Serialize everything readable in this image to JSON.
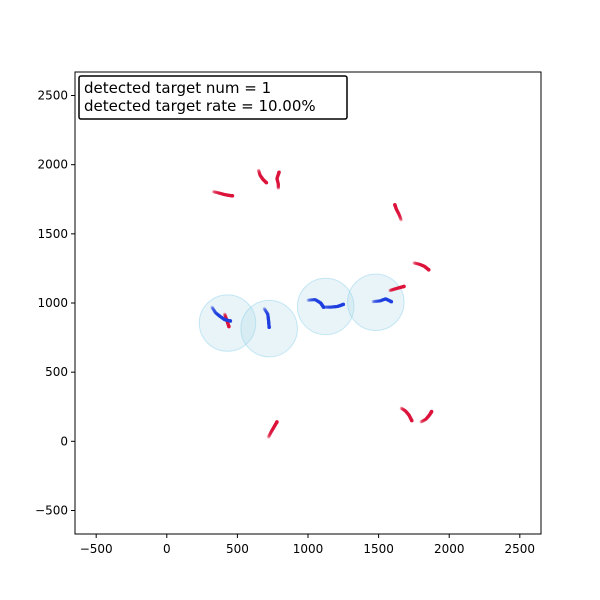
{
  "chart_data": {
    "type": "scatter",
    "title": "",
    "xlabel": "",
    "ylabel": "",
    "xlim": [
      -650,
      2650
    ],
    "ylim": [
      -670,
      2670
    ],
    "x_ticks": [
      -500,
      0,
      500,
      1000,
      1500,
      2000,
      2500
    ],
    "y_ticks": [
      -500,
      0,
      500,
      1000,
      1500,
      2000,
      2500
    ],
    "grid": false,
    "colors": {
      "undetected_track": "#dc143c",
      "detected_track": "#1f3fe0",
      "detection_circle_fill": "#add8e6",
      "detection_circle_edge": "#87ceeb"
    },
    "annotation": {
      "lines": [
        "detected target num = 1",
        "detected target rate = 10.00%"
      ],
      "placement": "top-left"
    },
    "detection_circles": [
      {
        "x": 430,
        "y": 855,
        "r": 200
      },
      {
        "x": 725,
        "y": 815,
        "r": 200
      },
      {
        "x": 1125,
        "y": 975,
        "r": 200
      },
      {
        "x": 1480,
        "y": 1005,
        "r": 200
      }
    ],
    "series": [
      {
        "kind": "undetected",
        "points": [
          [
            330,
            1805
          ],
          [
            370,
            1795
          ],
          [
            405,
            1785
          ],
          [
            440,
            1778
          ],
          [
            465,
            1775
          ]
        ]
      },
      {
        "kind": "undetected",
        "points": [
          [
            650,
            1960
          ],
          [
            660,
            1925
          ],
          [
            680,
            1895
          ],
          [
            705,
            1870
          ]
        ]
      },
      {
        "kind": "undetected",
        "points": [
          [
            790,
            1830
          ],
          [
            790,
            1860
          ],
          [
            780,
            1900
          ],
          [
            795,
            1945
          ]
        ]
      },
      {
        "kind": "undetected",
        "points": [
          [
            1660,
            1600
          ],
          [
            1645,
            1640
          ],
          [
            1625,
            1680
          ],
          [
            1615,
            1710
          ]
        ]
      },
      {
        "kind": "undetected",
        "points": [
          [
            1750,
            1290
          ],
          [
            1790,
            1280
          ],
          [
            1825,
            1265
          ],
          [
            1855,
            1240
          ]
        ]
      },
      {
        "kind": "undetected",
        "points": [
          [
            1580,
            1090
          ],
          [
            1610,
            1100
          ],
          [
            1645,
            1110
          ],
          [
            1680,
            1120
          ]
        ]
      },
      {
        "kind": "undetected",
        "points": [
          [
            720,
            30
          ],
          [
            740,
            70
          ],
          [
            760,
            105
          ],
          [
            780,
            140
          ]
        ]
      },
      {
        "kind": "undetected",
        "points": [
          [
            1660,
            240
          ],
          [
            1690,
            220
          ],
          [
            1715,
            190
          ],
          [
            1735,
            150
          ]
        ]
      },
      {
        "kind": "undetected",
        "points": [
          [
            1800,
            140
          ],
          [
            1835,
            160
          ],
          [
            1860,
            190
          ],
          [
            1875,
            215
          ]
        ]
      },
      {
        "kind": "undetected",
        "points": [
          [
            410,
            920
          ],
          [
            420,
            890
          ],
          [
            430,
            860
          ],
          [
            440,
            830
          ]
        ]
      },
      {
        "kind": "detected",
        "points": [
          [
            320,
            970
          ],
          [
            345,
            930
          ],
          [
            375,
            905
          ],
          [
            410,
            880
          ],
          [
            450,
            870
          ]
        ]
      },
      {
        "kind": "detected",
        "points": [
          [
            690,
            960
          ],
          [
            715,
            920
          ],
          [
            720,
            880
          ],
          [
            725,
            825
          ]
        ]
      },
      {
        "kind": "detected",
        "points": [
          [
            1000,
            1020
          ],
          [
            1050,
            1025
          ],
          [
            1090,
            1000
          ],
          [
            1110,
            970
          ]
        ]
      },
      {
        "kind": "detected",
        "points": [
          [
            1110,
            970
          ],
          [
            1160,
            970
          ],
          [
            1210,
            975
          ],
          [
            1250,
            990
          ]
        ]
      },
      {
        "kind": "detected",
        "points": [
          [
            1460,
            1010
          ],
          [
            1510,
            1015
          ],
          [
            1550,
            1030
          ],
          [
            1590,
            1010
          ]
        ]
      }
    ]
  }
}
